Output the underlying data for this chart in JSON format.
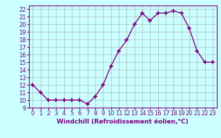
{
  "x": [
    0,
    1,
    2,
    3,
    4,
    5,
    6,
    7,
    8,
    9,
    10,
    11,
    12,
    13,
    14,
    15,
    16,
    17,
    18,
    19,
    20,
    21,
    22,
    23
  ],
  "y": [
    12,
    11,
    10,
    10,
    10,
    10,
    10,
    9.5,
    10.5,
    12,
    14.5,
    16.5,
    17.9,
    20,
    21.5,
    20.5,
    21.5,
    21.5,
    21.8,
    21.5,
    19.5,
    16.5,
    15,
    15
  ],
  "line_color": "#800080",
  "marker": "+",
  "marker_size": 4,
  "line_width": 1.0,
  "bg_color": "#ccffff",
  "grid_color": "#aabbbb",
  "xlabel": "Windchill (Refroidissement éolien,°C)",
  "xlabel_color": "#800080",
  "xlabel_fontsize": 6.5,
  "tick_color": "#800080",
  "tick_fontsize": 6,
  "ylim": [
    9,
    22.5
  ],
  "xlim": [
    -0.5,
    23.5
  ],
  "yticks": [
    9,
    10,
    11,
    12,
    13,
    14,
    15,
    16,
    17,
    18,
    19,
    20,
    21,
    22
  ],
  "xticks": [
    0,
    1,
    2,
    3,
    4,
    5,
    6,
    7,
    8,
    9,
    10,
    11,
    12,
    13,
    14,
    15,
    16,
    17,
    18,
    19,
    20,
    21,
    22,
    23
  ],
  "spine_color": "#800080"
}
